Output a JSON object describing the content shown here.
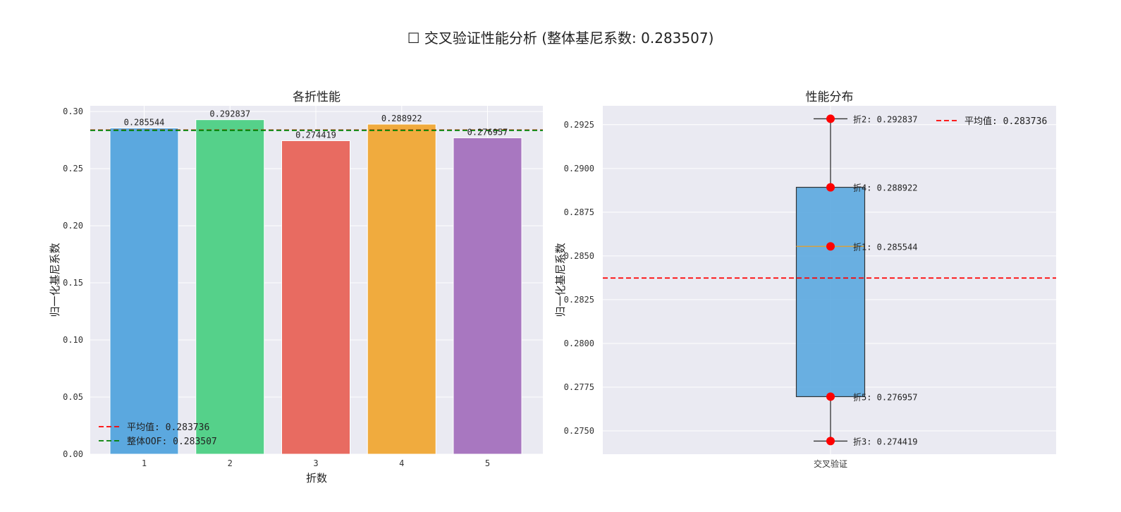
{
  "suptitle": "☐ 交叉验证性能分析 (整体基尼系数: 0.283507)",
  "chart_data": [
    {
      "type": "bar",
      "title": "各折性能",
      "xlabel": "折数",
      "ylabel": "归一化基尼系数",
      "categories": [
        "1",
        "2",
        "3",
        "4",
        "5"
      ],
      "values": [
        0.285544,
        0.292837,
        0.274419,
        0.288922,
        0.276957
      ],
      "value_labels": [
        "0.285544",
        "0.292837",
        "0.274419",
        "0.288922",
        "0.276957"
      ],
      "colors": [
        "#5ba8df",
        "#55d18a",
        "#e86b61",
        "#f0ab3e",
        "#a877c0"
      ],
      "ylim": [
        0,
        0.305
      ],
      "yticks": [
        0,
        0.05,
        0.1,
        0.15,
        0.2,
        0.25,
        0.3
      ],
      "ytick_labels": [
        "0.00",
        "0.05",
        "0.10",
        "0.15",
        "0.20",
        "0.25",
        "0.30"
      ],
      "hlines": [
        {
          "label": "平均值: 0.283736",
          "value": 0.283736,
          "color": "#ff0000"
        },
        {
          "label": "整体OOF: 0.283507",
          "value": 0.283507,
          "color": "#008000"
        }
      ],
      "legend": "lower-left",
      "grid": true
    },
    {
      "type": "box",
      "title": "性能分布",
      "xlabel": "",
      "ylabel": "归一化基尼系数",
      "category": "交叉验证",
      "values": [
        0.285544,
        0.292837,
        0.274419,
        0.288922,
        0.276957
      ],
      "box": {
        "min": 0.274419,
        "q1": 0.276957,
        "median": 0.285544,
        "q3": 0.288922,
        "max": 0.292837
      },
      "points": [
        {
          "label": "折2: 0.292837",
          "value": 0.292837
        },
        {
          "label": "折4: 0.288922",
          "value": 0.288922
        },
        {
          "label": "折1: 0.285544",
          "value": 0.285544
        },
        {
          "label": "折5: 0.276957",
          "value": 0.276957
        },
        {
          "label": "折3: 0.274419",
          "value": 0.274419
        }
      ],
      "ylim": [
        0.27367,
        0.29358
      ],
      "yticks": [
        0.275,
        0.2775,
        0.28,
        0.2825,
        0.285,
        0.2875,
        0.29,
        0.2925
      ],
      "ytick_labels": [
        "0.2750",
        "0.2775",
        "0.2800",
        "0.2825",
        "0.2850",
        "0.2875",
        "0.2900",
        "0.2925"
      ],
      "hlines": [
        {
          "label": "平均值: 0.283736",
          "value": 0.283736,
          "color": "#ff0000"
        }
      ],
      "box_color": "#5ba8df",
      "point_color": "#ff0000",
      "legend": "top-right",
      "grid": true
    }
  ]
}
